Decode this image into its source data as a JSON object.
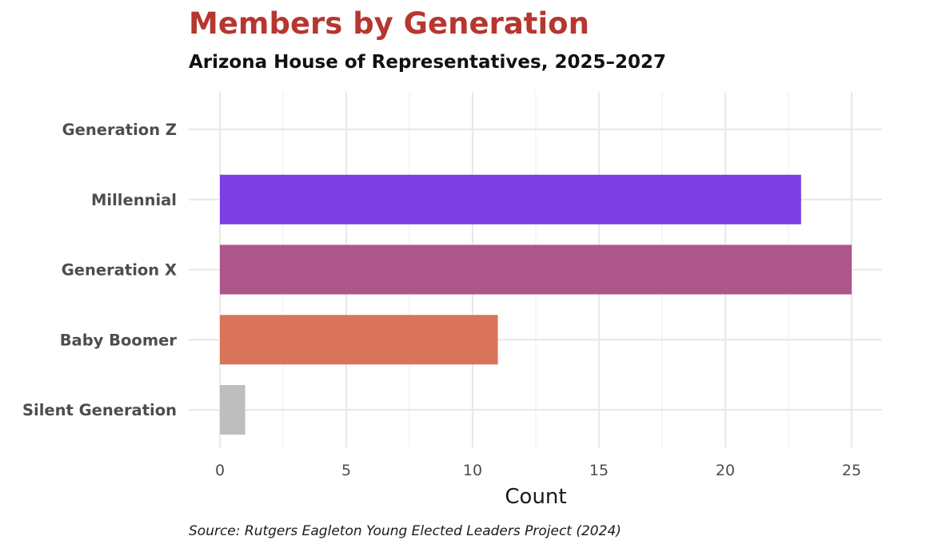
{
  "chart_data": {
    "type": "bar",
    "orientation": "horizontal",
    "title": "Members by Generation",
    "subtitle": "Arizona House of Representatives, 2025–2027",
    "caption": "Source: Rutgers Eagleton Young Elected Leaders Project (2024)",
    "xlabel": "Count",
    "ylabel": "",
    "categories": [
      "Generation Z",
      "Millennial",
      "Generation X",
      "Baby Boomer",
      "Silent Generation"
    ],
    "values": [
      0,
      23,
      25,
      11,
      1
    ],
    "colors": [
      "#7b3fe4",
      "#7b3fe4",
      "#ac5689",
      "#d9745a",
      "#bebebe"
    ],
    "xlim": [
      0,
      26.2
    ],
    "x_ticks": [
      0,
      5,
      10,
      15,
      20,
      25
    ],
    "grid": true,
    "legend": "none"
  }
}
